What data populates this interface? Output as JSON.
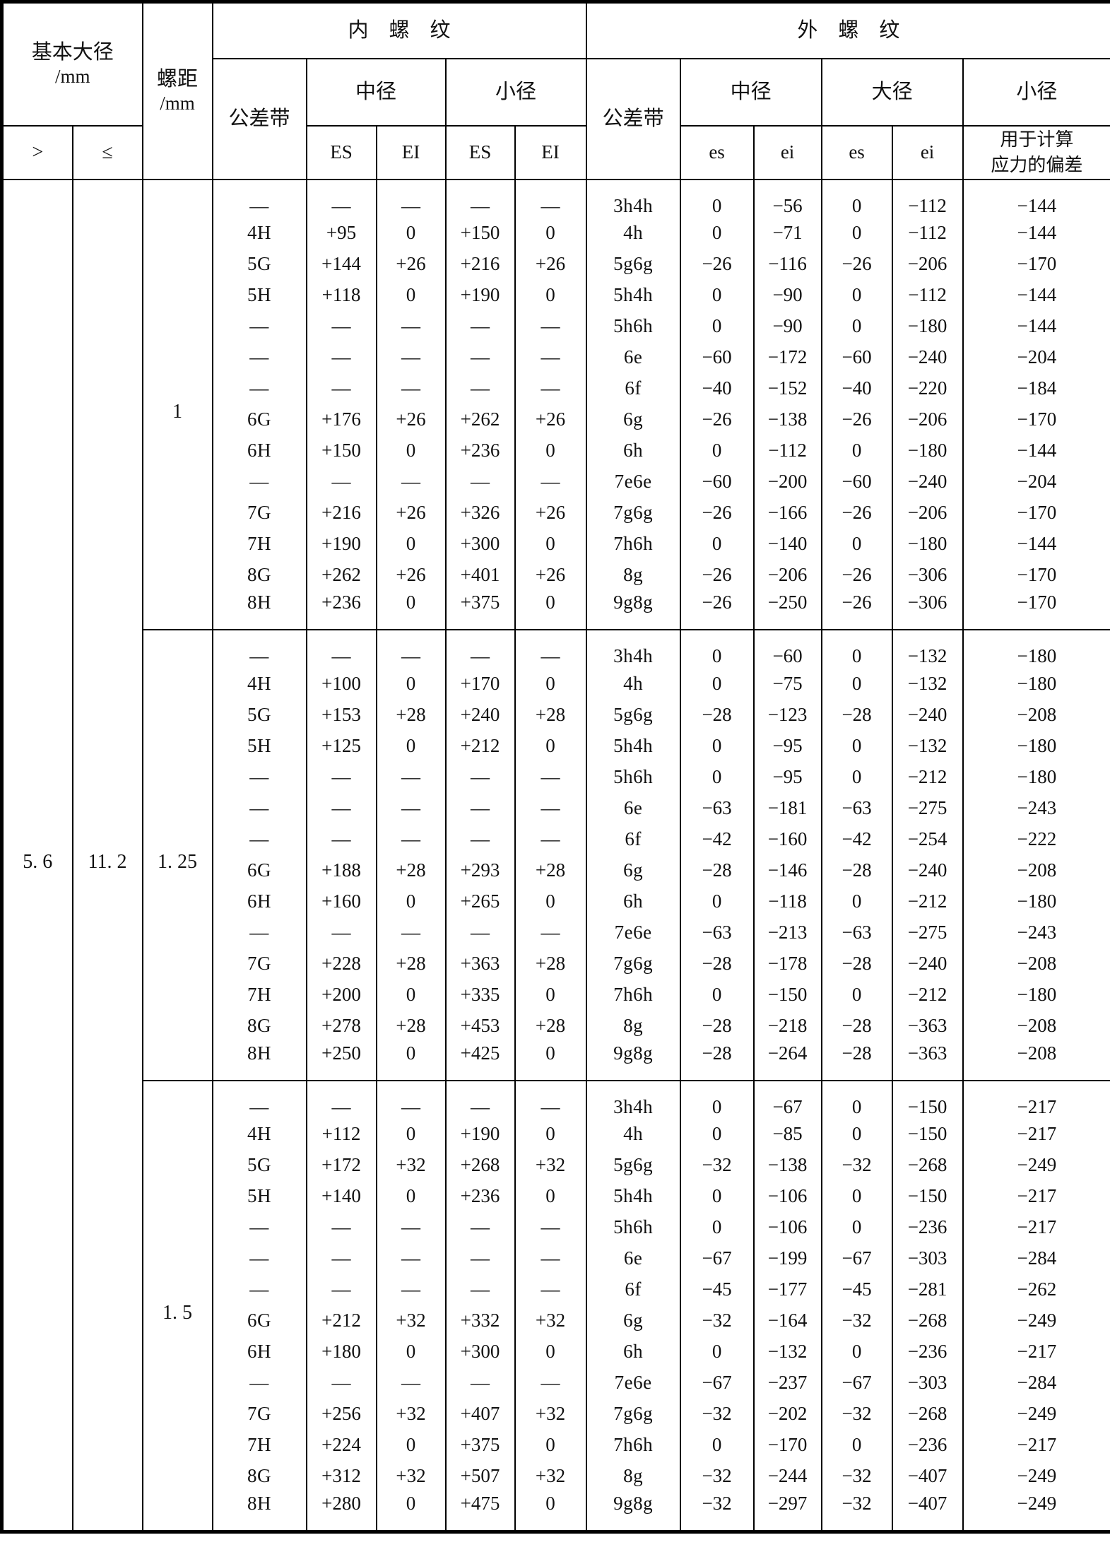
{
  "table": {
    "header": {
      "basic_major_diameter_title": "基本大径",
      "basic_major_diameter_unit": "/mm",
      "col_gt": ">",
      "col_le": "≤",
      "pitch_title": "螺距",
      "pitch_unit": "/mm",
      "internal_thread_title": "内　螺　纹",
      "external_thread_title": "外　螺　纹",
      "tolerance_zone_label": "公差带",
      "pitch_dia_label": "中径",
      "minor_dia_label": "小径",
      "major_dia_label": "大径",
      "es_upper_int": "ES",
      "ei_lower_int": "EI",
      "es_lower_ext": "es",
      "ei_lower_ext": "ei",
      "stress_dev_line1": "用于计算",
      "stress_dev_line2": "应力的偏差"
    },
    "range": {
      "gt_value": "5. 6",
      "le_value": "11. 2"
    },
    "sections": [
      {
        "pitch": "1",
        "rows": [
          [
            "—",
            "—",
            "—",
            "—",
            "—",
            "3h4h",
            "0",
            "−56",
            "0",
            "−112",
            "−144"
          ],
          [
            "4H",
            "+95",
            "0",
            "+150",
            "0",
            "4h",
            "0",
            "−71",
            "0",
            "−112",
            "−144"
          ],
          [
            "5G",
            "+144",
            "+26",
            "+216",
            "+26",
            "5g6g",
            "−26",
            "−116",
            "−26",
            "−206",
            "−170"
          ],
          [
            "5H",
            "+118",
            "0",
            "+190",
            "0",
            "5h4h",
            "0",
            "−90",
            "0",
            "−112",
            "−144"
          ],
          [
            "—",
            "—",
            "—",
            "—",
            "—",
            "5h6h",
            "0",
            "−90",
            "0",
            "−180",
            "−144"
          ],
          [
            "—",
            "—",
            "—",
            "—",
            "—",
            "6e",
            "−60",
            "−172",
            "−60",
            "−240",
            "−204"
          ],
          [
            "—",
            "—",
            "—",
            "—",
            "—",
            "6f",
            "−40",
            "−152",
            "−40",
            "−220",
            "−184"
          ],
          [
            "6G",
            "+176",
            "+26",
            "+262",
            "+26",
            "6g",
            "−26",
            "−138",
            "−26",
            "−206",
            "−170"
          ],
          [
            "6H",
            "+150",
            "0",
            "+236",
            "0",
            "6h",
            "0",
            "−112",
            "0",
            "−180",
            "−144"
          ],
          [
            "—",
            "—",
            "—",
            "—",
            "—",
            "7e6e",
            "−60",
            "−200",
            "−60",
            "−240",
            "−204"
          ],
          [
            "7G",
            "+216",
            "+26",
            "+326",
            "+26",
            "7g6g",
            "−26",
            "−166",
            "−26",
            "−206",
            "−170"
          ],
          [
            "7H",
            "+190",
            "0",
            "+300",
            "0",
            "7h6h",
            "0",
            "−140",
            "0",
            "−180",
            "−144"
          ],
          [
            "8G",
            "+262",
            "+26",
            "+401",
            "+26",
            "8g",
            "−26",
            "−206",
            "−26",
            "−306",
            "−170"
          ],
          [
            "8H",
            "+236",
            "0",
            "+375",
            "0",
            "9g8g",
            "−26",
            "−250",
            "−26",
            "−306",
            "−170"
          ]
        ]
      },
      {
        "pitch": "1. 25",
        "rows": [
          [
            "—",
            "—",
            "—",
            "—",
            "—",
            "3h4h",
            "0",
            "−60",
            "0",
            "−132",
            "−180"
          ],
          [
            "4H",
            "+100",
            "0",
            "+170",
            "0",
            "4h",
            "0",
            "−75",
            "0",
            "−132",
            "−180"
          ],
          [
            "5G",
            "+153",
            "+28",
            "+240",
            "+28",
            "5g6g",
            "−28",
            "−123",
            "−28",
            "−240",
            "−208"
          ],
          [
            "5H",
            "+125",
            "0",
            "+212",
            "0",
            "5h4h",
            "0",
            "−95",
            "0",
            "−132",
            "−180"
          ],
          [
            "—",
            "—",
            "—",
            "—",
            "—",
            "5h6h",
            "0",
            "−95",
            "0",
            "−212",
            "−180"
          ],
          [
            "—",
            "—",
            "—",
            "—",
            "—",
            "6e",
            "−63",
            "−181",
            "−63",
            "−275",
            "−243"
          ],
          [
            "—",
            "—",
            "—",
            "—",
            "—",
            "6f",
            "−42",
            "−160",
            "−42",
            "−254",
            "−222"
          ],
          [
            "6G",
            "+188",
            "+28",
            "+293",
            "+28",
            "6g",
            "−28",
            "−146",
            "−28",
            "−240",
            "−208"
          ],
          [
            "6H",
            "+160",
            "0",
            "+265",
            "0",
            "6h",
            "0",
            "−118",
            "0",
            "−212",
            "−180"
          ],
          [
            "—",
            "—",
            "—",
            "—",
            "—",
            "7e6e",
            "−63",
            "−213",
            "−63",
            "−275",
            "−243"
          ],
          [
            "7G",
            "+228",
            "+28",
            "+363",
            "+28",
            "7g6g",
            "−28",
            "−178",
            "−28",
            "−240",
            "−208"
          ],
          [
            "7H",
            "+200",
            "0",
            "+335",
            "0",
            "7h6h",
            "0",
            "−150",
            "0",
            "−212",
            "−180"
          ],
          [
            "8G",
            "+278",
            "+28",
            "+453",
            "+28",
            "8g",
            "−28",
            "−218",
            "−28",
            "−363",
            "−208"
          ],
          [
            "8H",
            "+250",
            "0",
            "+425",
            "0",
            "9g8g",
            "−28",
            "−264",
            "−28",
            "−363",
            "−208"
          ]
        ]
      },
      {
        "pitch": "1. 5",
        "rows": [
          [
            "—",
            "—",
            "—",
            "—",
            "—",
            "3h4h",
            "0",
            "−67",
            "0",
            "−150",
            "−217"
          ],
          [
            "4H",
            "+112",
            "0",
            "+190",
            "0",
            "4h",
            "0",
            "−85",
            "0",
            "−150",
            "−217"
          ],
          [
            "5G",
            "+172",
            "+32",
            "+268",
            "+32",
            "5g6g",
            "−32",
            "−138",
            "−32",
            "−268",
            "−249"
          ],
          [
            "5H",
            "+140",
            "0",
            "+236",
            "0",
            "5h4h",
            "0",
            "−106",
            "0",
            "−150",
            "−217"
          ],
          [
            "—",
            "—",
            "—",
            "—",
            "—",
            "5h6h",
            "0",
            "−106",
            "0",
            "−236",
            "−217"
          ],
          [
            "—",
            "—",
            "—",
            "—",
            "—",
            "6e",
            "−67",
            "−199",
            "−67",
            "−303",
            "−284"
          ],
          [
            "—",
            "—",
            "—",
            "—",
            "—",
            "6f",
            "−45",
            "−177",
            "−45",
            "−281",
            "−262"
          ],
          [
            "6G",
            "+212",
            "+32",
            "+332",
            "+32",
            "6g",
            "−32",
            "−164",
            "−32",
            "−268",
            "−249"
          ],
          [
            "6H",
            "+180",
            "0",
            "+300",
            "0",
            "6h",
            "0",
            "−132",
            "0",
            "−236",
            "−217"
          ],
          [
            "—",
            "—",
            "—",
            "—",
            "—",
            "7e6e",
            "−67",
            "−237",
            "−67",
            "−303",
            "−284"
          ],
          [
            "7G",
            "+256",
            "+32",
            "+407",
            "+32",
            "7g6g",
            "−32",
            "−202",
            "−32",
            "−268",
            "−249"
          ],
          [
            "7H",
            "+224",
            "0",
            "+375",
            "0",
            "7h6h",
            "0",
            "−170",
            "0",
            "−236",
            "−217"
          ],
          [
            "8G",
            "+312",
            "+32",
            "+507",
            "+32",
            "8g",
            "−32",
            "−244",
            "−32",
            "−407",
            "−249"
          ],
          [
            "8H",
            "+280",
            "0",
            "+475",
            "0",
            "9g8g",
            "−32",
            "−297",
            "−32",
            "−407",
            "−249"
          ]
        ]
      }
    ]
  }
}
